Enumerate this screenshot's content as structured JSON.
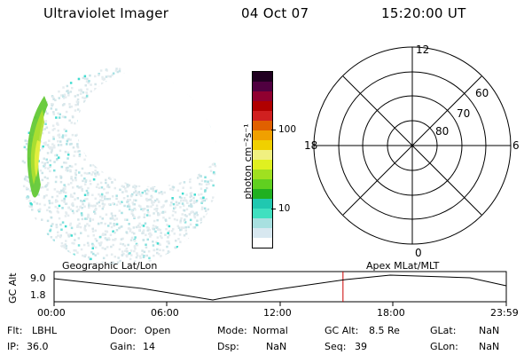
{
  "header": {
    "instrument": "Ultraviolet Imager",
    "date": "04 Oct 07",
    "time": "15:20:00 UT"
  },
  "colorbar": {
    "unit_label": "photon cm⁻²s⁻¹",
    "ticks": [
      "100",
      "10"
    ],
    "scale": "log",
    "colors": [
      "#ffffff",
      "#d8e8f0",
      "#a8e0e0",
      "#40e0c0",
      "#20c8b0",
      "#20b020",
      "#60d020",
      "#a0e020",
      "#e0f020",
      "#f0f080",
      "#f0d000",
      "#f0a000",
      "#e06000",
      "#d02020",
      "#b00000",
      "#900030",
      "#500040",
      "#200020"
    ]
  },
  "polar_plot": {
    "mlt_labels": [
      "12",
      "18",
      "6",
      "0"
    ],
    "lat_labels": [
      "60",
      "70",
      "80"
    ]
  },
  "timeline": {
    "left_title": "Geographic Lat/Lon",
    "right_title": "Apex MLat/MLT",
    "y_axis_label": "GC Alt",
    "y_ticks": [
      "9.0",
      "1.8"
    ],
    "time_ticks": [
      "00:00",
      "06:00",
      "12:00",
      "18:00",
      "23:59"
    ],
    "current_time_marker_hours": 15.333,
    "marker_color": "#cc0000"
  },
  "footer": {
    "filter": {
      "label": "Flt:",
      "value": "LBHL"
    },
    "ip": {
      "label": "IP:",
      "value": "36.0"
    },
    "door": {
      "label": "Door:",
      "value": "Open"
    },
    "gain": {
      "label": "Gain:",
      "value": "14"
    },
    "mode": {
      "label": "Mode:",
      "value": "Normal"
    },
    "dsp": {
      "label": "Dsp:",
      "value": "NaN"
    },
    "gc_alt": {
      "label": "GC Alt:",
      "value": "8.5 Re"
    },
    "seq": {
      "label": "Seq:",
      "value": "39"
    },
    "glat": {
      "label": "GLat:",
      "value": "NaN"
    },
    "glon": {
      "label": "GLon:",
      "value": "NaN"
    }
  }
}
